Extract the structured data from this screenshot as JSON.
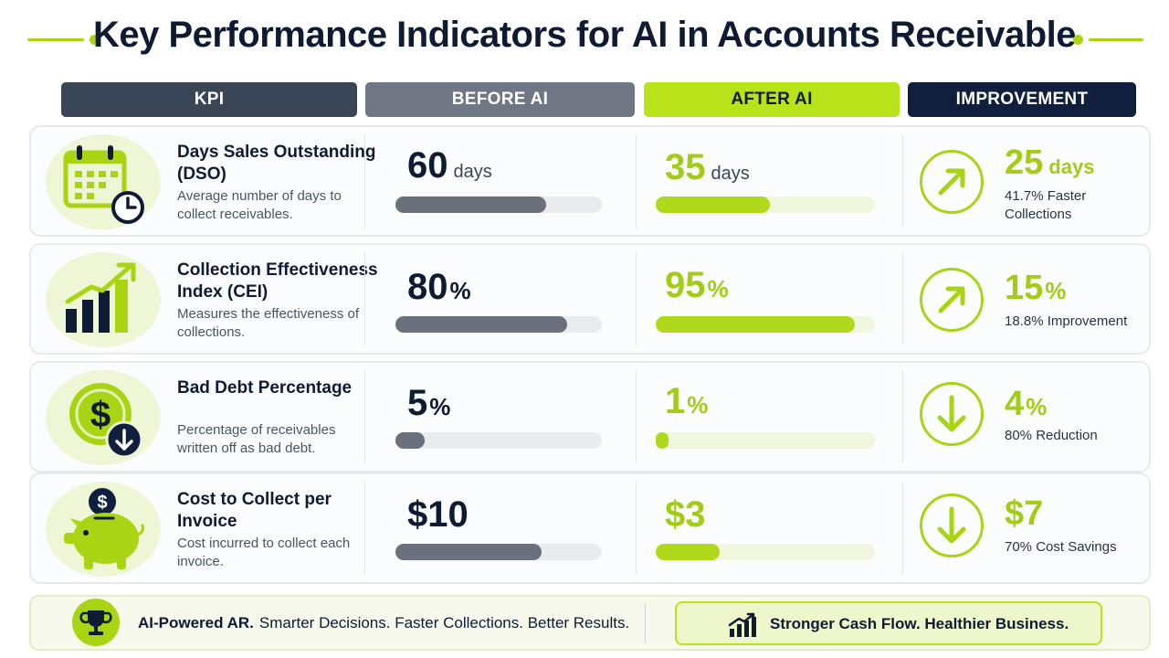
{
  "title": "Key Performance Indicators for AI in Accounts Receivable",
  "colors": {
    "accent": "#a8d414",
    "navy": "#0f1f3d",
    "slate": "#3a4556",
    "gray": "#707784"
  },
  "headers": {
    "kpi": "KPI",
    "before": "BEFORE AI",
    "after": "AFTER AI",
    "improvement": "IMPROVEMENT"
  },
  "rows": [
    {
      "icon": "calendar-clock-icon",
      "name": "Days Sales Outstanding (DSO)",
      "desc": "Average number of days to collect receivables.",
      "before_value": "60",
      "before_unit": "days",
      "before_level": 0.73,
      "after_value": "35",
      "after_unit": "days",
      "after_level": 0.52,
      "imp_icon": "arrow-up-right-icon",
      "imp_value": "25",
      "imp_unit": "days",
      "imp_note": "41.7% Faster Collections"
    },
    {
      "icon": "growth-chart-icon",
      "name": "Collection Effectiveness Index (CEI)",
      "desc": "Measures the effectiveness of collections.",
      "before_value": "80",
      "before_unit": "%",
      "before_level": 0.83,
      "after_value": "95",
      "after_unit": "%",
      "after_level": 0.91,
      "imp_icon": "arrow-up-right-icon",
      "imp_value": "15",
      "imp_unit": "%",
      "imp_note": "18.8% Improvement"
    },
    {
      "icon": "dollar-down-icon",
      "name": "Bad Debt Percentage",
      "desc": "Percentage of receivables written off as bad debt.",
      "before_value": "5",
      "before_unit": "%",
      "before_level": 0.14,
      "after_value": "1",
      "after_unit": "%",
      "after_level": 0.06,
      "imp_icon": "arrow-down-icon",
      "imp_value": "4",
      "imp_unit": "%",
      "imp_note": "80% Reduction"
    },
    {
      "icon": "piggy-bank-icon",
      "name": "Cost to Collect per Invoice",
      "desc": "Cost incurred to collect each invoice.",
      "before_value": "$10",
      "before_unit": "",
      "before_level": 0.71,
      "after_value": "$3",
      "after_unit": "",
      "after_level": 0.29,
      "imp_icon": "arrow-down-icon",
      "imp_value": "$7",
      "imp_unit": "",
      "imp_note": "70% Cost Savings"
    }
  ],
  "footer": {
    "icon": "trophy-icon",
    "bold": "AI-Powered AR.",
    "text": "Smarter Decisions. Faster Collections. Better Results.",
    "pill_icon": "rising-chart-icon",
    "pill_text": "Stronger Cash Flow. Healthier Business."
  }
}
